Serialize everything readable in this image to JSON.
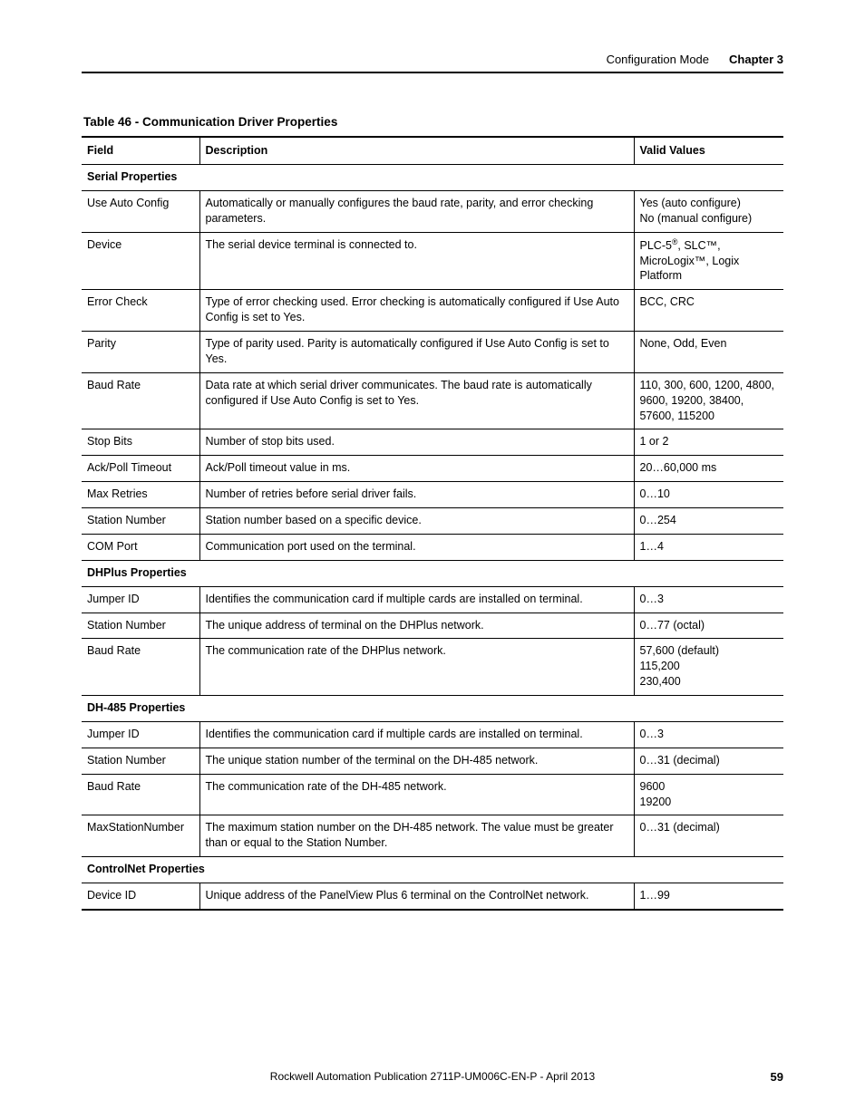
{
  "header": {
    "section": "Configuration Mode",
    "chapter": "Chapter 3"
  },
  "table": {
    "title": "Table 46 - Communication Driver Properties",
    "columns": [
      "Field",
      "Description",
      "Valid Values"
    ],
    "sections": [
      {
        "title": "Serial Properties",
        "rows": [
          {
            "field": "Use Auto Config",
            "desc": "Automatically or manually configures the baud rate, parity, and error checking parameters.",
            "valid": "Yes (auto configure)\nNo (manual configure)"
          },
          {
            "field": "Device",
            "desc": "The serial device terminal is connected to.",
            "valid": "PLC-5®, SLC™, MicroLogix™, Logix Platform"
          },
          {
            "field": "Error Check",
            "desc": "Type of error checking used. Error checking is automatically configured if Use Auto Config is set to Yes.",
            "valid": "BCC, CRC"
          },
          {
            "field": "Parity",
            "desc": "Type of parity used. Parity is automatically configured if Use Auto Config is set to Yes.",
            "valid": "None, Odd, Even"
          },
          {
            "field": "Baud Rate",
            "desc": "Data rate at which serial driver communicates. The baud rate is automatically configured if Use Auto Config is set to Yes.",
            "valid": "110, 300, 600, 1200, 4800, 9600, 19200, 38400, 57600, 115200"
          },
          {
            "field": "Stop Bits",
            "desc": "Number of stop bits used.",
            "valid": "1 or 2"
          },
          {
            "field": "Ack/Poll Timeout",
            "desc": "Ack/Poll timeout value in ms.",
            "valid": "20…60,000 ms"
          },
          {
            "field": "Max Retries",
            "desc": "Number of retries before serial driver fails.",
            "valid": "0…10"
          },
          {
            "field": "Station Number",
            "desc": "Station number based on a specific device.",
            "valid": "0…254"
          },
          {
            "field": "COM Port",
            "desc": "Communication port used on the terminal.",
            "valid": "1…4"
          }
        ]
      },
      {
        "title": "DHPlus Properties",
        "rows": [
          {
            "field": "Jumper ID",
            "desc": "Identifies the communication card if multiple cards are installed on terminal.",
            "valid": "0…3"
          },
          {
            "field": "Station Number",
            "desc": "The unique address of terminal on the DHPlus network.",
            "valid": "0…77 (octal)"
          },
          {
            "field": "Baud Rate",
            "desc": "The communication rate of the DHPlus network.",
            "valid": "57,600 (default)\n115,200\n230,400"
          }
        ]
      },
      {
        "title": "DH-485 Properties",
        "rows": [
          {
            "field": "Jumper ID",
            "desc": "Identifies the communication card if multiple cards are installed on terminal.",
            "valid": "0…3"
          },
          {
            "field": "Station Number",
            "desc": "The unique station number of the terminal on the DH-485 network.",
            "valid": "0…31 (decimal)"
          },
          {
            "field": "Baud Rate",
            "desc": "The communication rate of the DH-485 network.",
            "valid": "9600\n19200"
          },
          {
            "field": "MaxStationNumber",
            "desc": "The maximum station number on the DH-485 network. The value must be greater than or equal to the Station Number.",
            "valid": "0…31 (decimal)"
          }
        ]
      },
      {
        "title": "ControlNet Properties",
        "rows": [
          {
            "field": "Device ID",
            "desc": "Unique address of the PanelView Plus 6 terminal on the ControlNet network.",
            "valid": "1…99"
          }
        ]
      }
    ]
  },
  "footer": {
    "publication": "Rockwell Automation Publication 2711P-UM006C-EN-P - April 2013",
    "page": "59"
  }
}
